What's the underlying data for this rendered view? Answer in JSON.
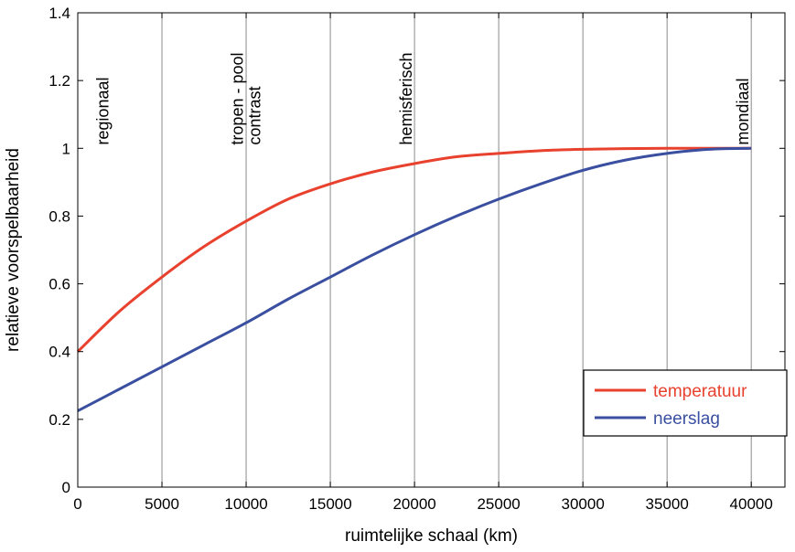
{
  "chart_data": {
    "type": "line",
    "title": "",
    "xlabel": "ruimtelijke schaal (km)",
    "ylabel": "relatieve voorspelbaarheid",
    "xlim": [
      0,
      42000
    ],
    "ylim": [
      0,
      1.4
    ],
    "xticks": [
      0,
      5000,
      10000,
      15000,
      20000,
      25000,
      30000,
      35000,
      40000
    ],
    "xtick_labels": [
      "0",
      "5000",
      "10000",
      "15000",
      "20000",
      "25000",
      "30000",
      "35000",
      "40000"
    ],
    "yticks": [
      0,
      0.2,
      0.4,
      0.6,
      0.8,
      1,
      1.2,
      1.4
    ],
    "ytick_labels": [
      "0",
      "0.2",
      "0.4",
      "0.6",
      "0.8",
      "1",
      "1.2",
      "1.4"
    ],
    "grid": "vertical lines at x ticks",
    "legend_position": "lower-right",
    "annotations": [
      {
        "lines": [
          "regionaal"
        ],
        "x": 1500,
        "y": 1.01
      },
      {
        "lines": [
          "tropen - pool",
          "contrast"
        ],
        "x": 10000,
        "y": 1.01
      },
      {
        "lines": [
          "hemisferisch"
        ],
        "x": 19500,
        "y": 1.01
      },
      {
        "lines": [
          "mondiaal"
        ],
        "x": 39500,
        "y": 1.01
      }
    ],
    "series": [
      {
        "name": "temperatuur",
        "color": "#e8412e",
        "x": [
          0,
          2500,
          5000,
          7500,
          10000,
          12500,
          15000,
          17500,
          20000,
          22500,
          25000,
          27500,
          30000,
          32500,
          35000,
          37500,
          40000
        ],
        "y": [
          0.4,
          0.52,
          0.62,
          0.71,
          0.785,
          0.85,
          0.895,
          0.93,
          0.955,
          0.975,
          0.985,
          0.993,
          0.997,
          0.999,
          1.0,
          1.0,
          1.0
        ]
      },
      {
        "name": "neerslag",
        "color": "#3a4fa0",
        "x": [
          0,
          2500,
          5000,
          7500,
          10000,
          12500,
          15000,
          17500,
          20000,
          22500,
          25000,
          27500,
          30000,
          32500,
          35000,
          37500,
          40000
        ],
        "y": [
          0.225,
          0.29,
          0.355,
          0.42,
          0.485,
          0.555,
          0.62,
          0.685,
          0.745,
          0.8,
          0.85,
          0.895,
          0.935,
          0.965,
          0.985,
          0.997,
          1.0
        ]
      }
    ]
  }
}
